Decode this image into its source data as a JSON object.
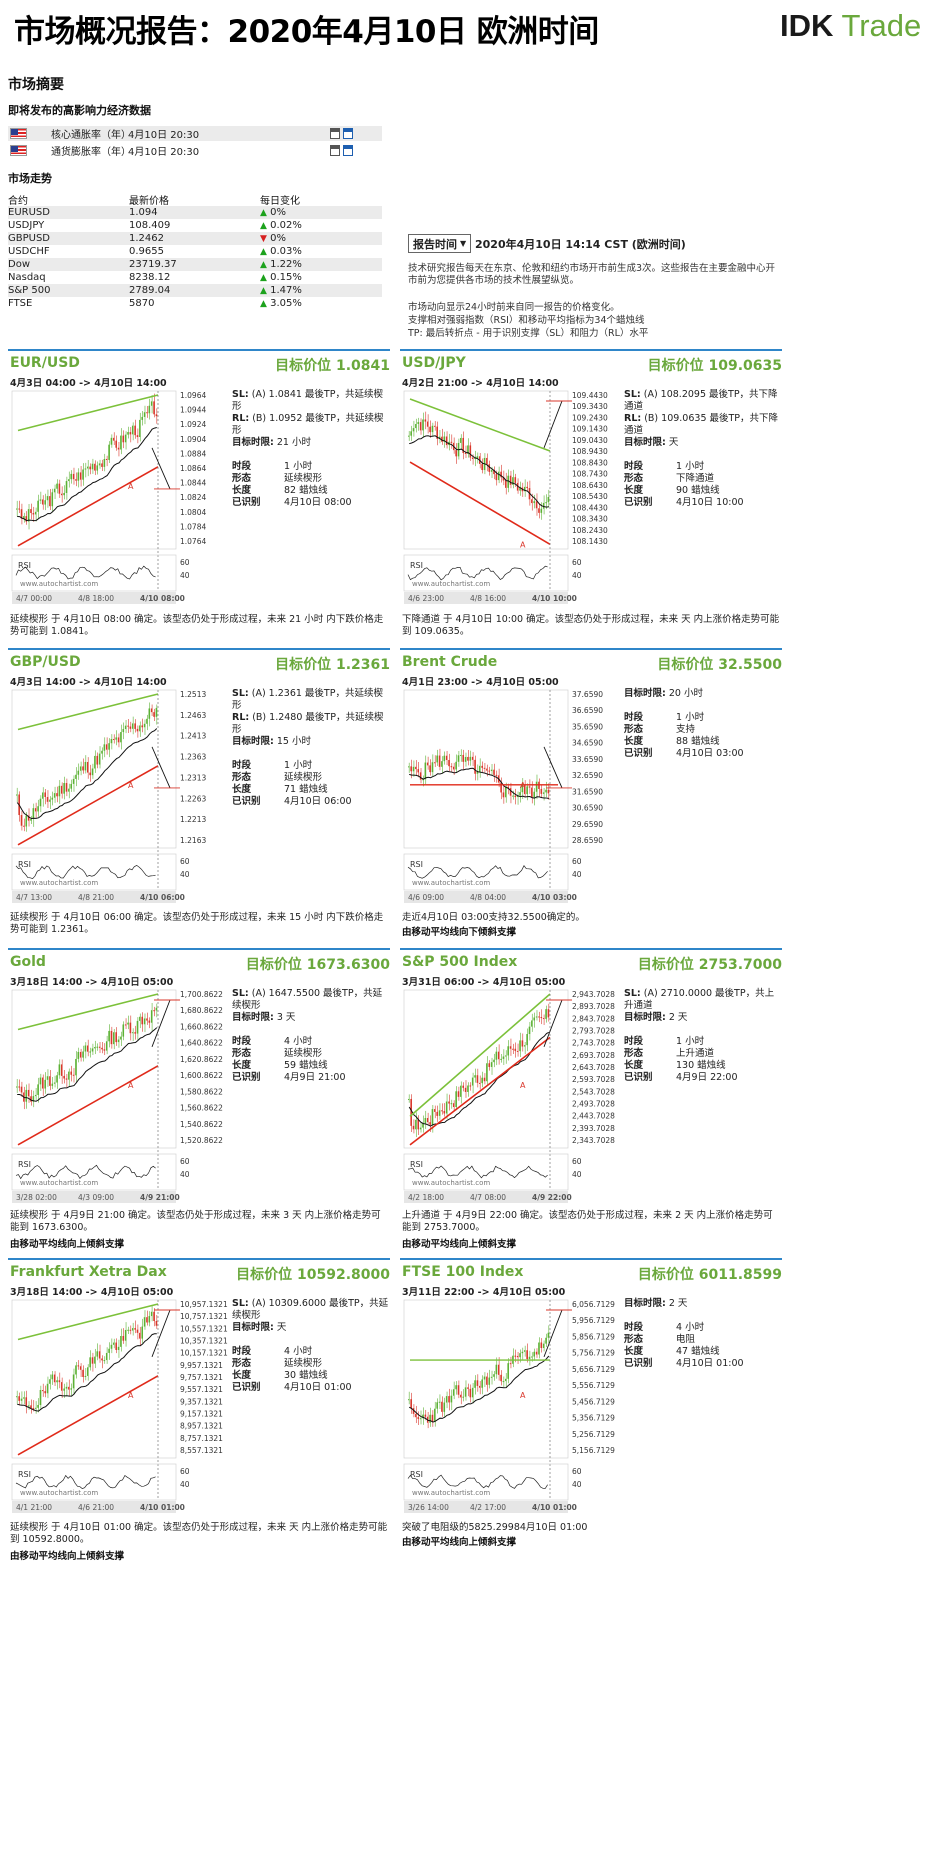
{
  "header": {
    "title": "市场概况报告：2020年4月10日 欧洲时间",
    "logo_dk": "IDK",
    "logo_trade": "Trade"
  },
  "summary": {
    "title": "市场摘要",
    "events_title": "即将发布的高影响力经济数据",
    "events": [
      {
        "name": "核心通胀率（年）",
        "time": "4月10日 20:30"
      },
      {
        "name": "通货膨胀率（年）",
        "time": "4月10日 20:30"
      }
    ],
    "trend_title": "市场走势",
    "cols": [
      "合约",
      "最新价格",
      "每日变化"
    ],
    "rows": [
      {
        "sym": "EURUSD",
        "price": "1.094",
        "dir": "up",
        "chg": "0%"
      },
      {
        "sym": "USDJPY",
        "price": "108.409",
        "dir": "up",
        "chg": "0.02%"
      },
      {
        "sym": "GBPUSD",
        "price": "1.2462",
        "dir": "down",
        "chg": "0%"
      },
      {
        "sym": "USDCHF",
        "price": "0.9655",
        "dir": "up",
        "chg": "0.03%"
      },
      {
        "sym": "Dow",
        "price": "23719.37",
        "dir": "up",
        "chg": "1.22%"
      },
      {
        "sym": "Nasdaq",
        "price": "8238.12",
        "dir": "up",
        "chg": "0.15%"
      },
      {
        "sym": "S&P 500",
        "price": "2789.04",
        "dir": "up",
        "chg": "1.47%"
      },
      {
        "sym": "FTSE",
        "price": "5870",
        "dir": "up",
        "chg": "3.05%"
      }
    ]
  },
  "report": {
    "btn": "报告时间",
    "time": "2020年4月10日 14:14 CST (欧洲时间)",
    "note1": "技术研究报告每天在东京、伦敦和纽约市场开市前生成3次。这些报告在主要金融中心开市前为您提供各市场的技术性展望纵览。",
    "note2": "市场动向显示24小时前来自同一报告的价格变化。",
    "note3": "支撑相对强弱指数（RSI）和移动平均指标为34个蜡烛线",
    "note4": "TP: 最后转折点 - 用于识别支撑（SL）和阻力（RL）水平"
  },
  "labels": {
    "rsi": "RSI",
    "watermark": "www.autochartist.com",
    "target_prefix": "目标价位 ",
    "sl": "SL:",
    "rl": "RL:",
    "target_time": "目标时限:",
    "period": "时段",
    "pattern": "形态",
    "length": "长度",
    "identified": "已识别"
  },
  "panels": [
    {
      "name": "EUR/USD",
      "target": "1.0841",
      "dates": "4月3日 04:00 -> 4月10日 14:00",
      "sl": "(A) 1.0841 最後TP，共延续楔形",
      "rl": "(B) 1.0952 最後TP，共延续楔形",
      "ttime": "21 小时",
      "period": "1 小时",
      "pattern": "延续楔形",
      "length": "82 蜡烛线",
      "ident": "4月10日 08:00",
      "desc": "延续楔形 于 4月10日 08:00 确定。该型态仍处于形成过程，未来 21 小时 内下跌价格走势可能到 1.0841。",
      "desc2": "",
      "yticks": [
        "1.0964",
        "1.0944",
        "1.0924",
        "1.0904",
        "1.0884",
        "1.0864",
        "1.0844",
        "1.0824",
        "1.0804",
        "1.0784",
        "1.0764"
      ],
      "xticks": [
        "4/7 00:00",
        "4/8 18:00",
        "4/10 08:00"
      ],
      "rsi_ticks": [
        "60",
        "40"
      ],
      "dir": "down",
      "ma": "up",
      "type": "wedge",
      "seed": 3
    },
    {
      "name": "USD/JPY",
      "target": "109.0635",
      "dates": "4月2日 21:00 -> 4月10日 14:00",
      "sl": "(A) 108.2095 最後TP，共下降通道",
      "rl": "(B) 109.0635 最後TP，共下降通道",
      "ttime": "天",
      "period": "1 小时",
      "pattern": "下降通道",
      "length": "90 蜡烛线",
      "ident": "4月10日 10:00",
      "desc": "下降通道 于 4月10日 10:00 确定。该型态仍处于形成过程，未来 天 内上涨价格走势可能到 109.0635。",
      "desc2": "",
      "yticks": [
        "109.4430",
        "109.3430",
        "109.2430",
        "109.1430",
        "109.0430",
        "108.9430",
        "108.8430",
        "108.7430",
        "108.6430",
        "108.5430",
        "108.4430",
        "108.3430",
        "108.2430",
        "108.1430"
      ],
      "xticks": [
        "4/6 23:00",
        "4/8 16:00",
        "4/10 10:00"
      ],
      "rsi_ticks": [
        "60",
        "40"
      ],
      "dir": "up",
      "ma": "down",
      "type": "channel-down",
      "seed": 7
    },
    {
      "name": "GBP/USD",
      "target": "1.2361",
      "dates": "4月3日 14:00 -> 4月10日 14:00",
      "sl": "(A) 1.2361 最後TP，共延续楔形",
      "rl": "(B) 1.2480 最後TP，共延续楔形",
      "ttime": "15 小时",
      "period": "1 小时",
      "pattern": "延续楔形",
      "length": "71 蜡烛线",
      "ident": "4月10日 06:00",
      "desc": "延续楔形 于 4月10日 06:00 确定。该型态仍处于形成过程，未来 15 小时 内下跌价格走势可能到 1.2361。",
      "desc2": "",
      "yticks": [
        "1.2513",
        "1.2463",
        "1.2413",
        "1.2363",
        "1.2313",
        "1.2263",
        "1.2213",
        "1.2163"
      ],
      "xticks": [
        "4/7 13:00",
        "4/8 21:00",
        "4/10 06:00"
      ],
      "rsi_ticks": [
        "60",
        "40"
      ],
      "dir": "down",
      "ma": "up",
      "type": "wedge",
      "seed": 11
    },
    {
      "name": "Brent Crude",
      "target": "32.5500",
      "dates": "4月1日 23:00 -> 4月10日 05:00",
      "ttime": "20 小时",
      "period": "1 小时",
      "pattern": "支持",
      "length": "88 蜡烛线",
      "ident": "4月10日 03:00",
      "desc": "走近4月10日 03:00支持32.5500确定的。",
      "desc2": "由移动平均线向下倾斜支撑",
      "yticks": [
        "37.6590",
        "36.6590",
        "35.6590",
        "34.6590",
        "33.6590",
        "32.6590",
        "31.6590",
        "30.6590",
        "29.6590",
        "28.6590"
      ],
      "xticks": [
        "4/6 09:00",
        "4/8 04:00",
        "4/10 03:00"
      ],
      "rsi_ticks": [
        "60",
        "40"
      ],
      "dir": "down",
      "ma": "up",
      "type": "support",
      "seed": 5
    },
    {
      "name": "Gold",
      "target": "1673.6300",
      "dates": "3月18日 14:00 -> 4月10日 05:00",
      "sl": "(A) 1647.5500 最後TP，共延续楔形",
      "ttime": "3 天",
      "period": "4 小时",
      "pattern": "延续楔形",
      "length": "59 蜡烛线",
      "ident": "4月9日 21:00",
      "desc": "延续楔形 于 4月9日 21:00 确定。该型态仍处于形成过程，未来 3 天 内上涨价格走势可能到 1673.6300。",
      "desc2": "由移动平均线向上倾斜支撑",
      "yticks": [
        "1,700.8622",
        "1,680.8622",
        "1,660.8622",
        "1,640.8622",
        "1,620.8622",
        "1,600.8622",
        "1,580.8622",
        "1,560.8622",
        "1,540.8622",
        "1,520.8622"
      ],
      "xticks": [
        "3/28 02:00",
        "4/3 09:00",
        "4/9 21:00"
      ],
      "rsi_ticks": [
        "60",
        "40"
      ],
      "dir": "up",
      "ma": "up",
      "type": "wedge-up",
      "seed": 13
    },
    {
      "name": "S&P 500 Index",
      "target": "2753.7000",
      "dates": "3月31日 06:00 -> 4月10日 05:00",
      "sl": "(A) 2710.0000 最後TP，共上升通道",
      "ttime": "2 天",
      "period": "1 小时",
      "pattern": "上升通道",
      "length": "130 蜡烛线",
      "ident": "4月9日 22:00",
      "desc": "上升通道 于 4月9日 22:00 确定。该型态仍处于形成过程，未来 2 天 内上涨价格走势可能到 2753.7000。",
      "desc2": "由移动平均线向上倾斜支撑",
      "yticks": [
        "2,943.7028",
        "2,893.7028",
        "2,843.7028",
        "2,793.7028",
        "2,743.7028",
        "2,693.7028",
        "2,643.7028",
        "2,593.7028",
        "2,543.7028",
        "2,493.7028",
        "2,443.7028",
        "2,393.7028",
        "2,343.7028"
      ],
      "xticks": [
        "4/2 18:00",
        "4/7 08:00",
        "4/9 22:00"
      ],
      "rsi_ticks": [
        "60",
        "40"
      ],
      "dir": "up",
      "ma": "up",
      "type": "channel-up",
      "seed": 17
    },
    {
      "name": "Frankfurt Xetra Dax",
      "target": "10592.8000",
      "dates": "3月18日 14:00 -> 4月10日 05:00",
      "sl": "(A) 10309.6000 最後TP，共延续楔形",
      "ttime": "天",
      "period": "4 小时",
      "pattern": "延续楔形",
      "length": "30 蜡烛线",
      "ident": "4月10日 01:00",
      "desc": "延续楔形 于 4月10日 01:00 确定。该型态仍处于形成过程，未来 天 内上涨价格走势可能到 10592.8000。",
      "desc2": "由移动平均线向上倾斜支撑",
      "yticks": [
        "10,957.1321",
        "10,757.1321",
        "10,557.1321",
        "10,357.1321",
        "10,157.1321",
        "9,957.1321",
        "9,757.1321",
        "9,557.1321",
        "9,357.1321",
        "9,157.1321",
        "8,957.1321",
        "8,757.1321",
        "8,557.1321"
      ],
      "xticks": [
        "4/1 21:00",
        "4/6 21:00",
        "4/10 01:00"
      ],
      "rsi_ticks": [
        "60",
        "40"
      ],
      "dir": "up",
      "ma": "up",
      "type": "wedge-up",
      "seed": 19
    },
    {
      "name": "FTSE 100 Index",
      "target": "6011.8599",
      "dates": "3月11日 22:00 -> 4月10日 05:00",
      "ttime": "2 天",
      "period": "4 小时",
      "pattern": "电阻",
      "length": "47 蜡烛线",
      "ident": "4月10日 01:00",
      "desc": "突破了电阻级的5825.29984月10日 01:00",
      "desc2": "由移动平均线向上倾斜支撑",
      "yticks": [
        "6,056.7129",
        "5,956.7129",
        "5,856.7129",
        "5,756.7129",
        "5,656.7129",
        "5,556.7129",
        "5,456.7129",
        "5,356.7129",
        "5,256.7129",
        "5,156.7129"
      ],
      "xticks": [
        "3/26 14:00",
        "4/2 17:00",
        "4/10 01:00"
      ],
      "rsi_ticks": [
        "60",
        "40"
      ],
      "dir": "up",
      "ma": "up",
      "type": "resistance",
      "seed": 23
    }
  ],
  "colors": {
    "green": "#6aa83c",
    "blue_rule": "#2f86c9",
    "candle_up": "#5bb134",
    "candle_down": "#d9372b",
    "ma": "#111111",
    "trend_green": "#7cc13a",
    "trend_red": "#e02a1a"
  }
}
